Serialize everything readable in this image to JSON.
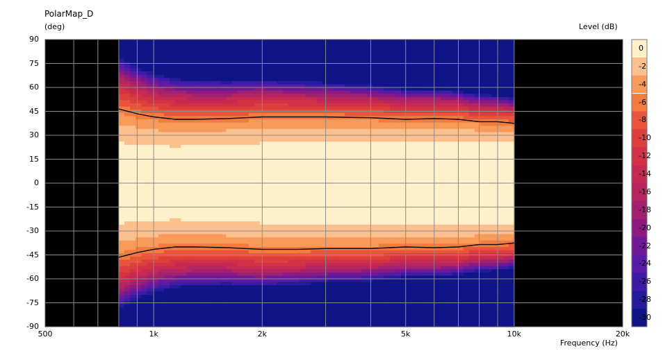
{
  "chart_data": {
    "type": "heatmap",
    "title": "PolarMap_D",
    "ylabel": "(deg)",
    "xlabel": "Frequency  (Hz)",
    "colorbar_label": "Level  (dB)",
    "x_scale": "log",
    "xlim": [
      500,
      20000
    ],
    "ylim": [
      -90,
      90
    ],
    "x_data_range": [
      800,
      10000
    ],
    "x_tick_labels": [
      "500",
      "1k",
      "2k",
      "5k",
      "10k",
      "20k"
    ],
    "x_tick_values": [
      500,
      1000,
      2000,
      5000,
      10000,
      20000
    ],
    "y_tick_values": [
      90,
      75,
      60,
      45,
      30,
      15,
      0,
      -15,
      -30,
      -45,
      -60,
      -75,
      -90
    ],
    "levels_db": [
      0,
      -2,
      -4,
      -6,
      -8,
      -10,
      -12,
      -14,
      -16,
      -18,
      -20,
      -22,
      -24,
      -26,
      -28,
      -30
    ],
    "level_tick_labels": [
      "0",
      "-2",
      "-4",
      "-6",
      "-8",
      "-10",
      "-12",
      "-14",
      "-16",
      "-18",
      "-20",
      "-22",
      "-24",
      "-26",
      "-28",
      "-30"
    ],
    "level_colors": [
      "#fff0cc",
      "#fcc08f",
      "#f79a5a",
      "#f27b3d",
      "#e8553a",
      "#dd3f3d",
      "#d23244",
      "#c62a52",
      "#b52660",
      "#a1206f",
      "#8c1a80",
      "#701998",
      "#5a1aa6",
      "#3e1ba6",
      "#241a9a",
      "#0f1586"
    ],
    "contour_level_db": -6,
    "contour_angle_deg": {
      "frequency_hz": [
        800,
        900,
        1000,
        1150,
        1300,
        1600,
        2000,
        2500,
        3000,
        4000,
        5000,
        6000,
        7000,
        8000,
        9000,
        10000
      ],
      "upper": [
        46.5,
        43.5,
        41.5,
        40,
        40,
        40.5,
        41.5,
        41.5,
        41.5,
        41,
        40,
        40.5,
        40,
        38.5,
        38.5,
        37.5
      ],
      "lower": [
        -46.5,
        -43.5,
        -41.5,
        -40,
        -40,
        -40.5,
        -41.5,
        -41.5,
        -41,
        -41,
        -40,
        -40.5,
        -40,
        -38.5,
        -38.5,
        -37.5
      ]
    }
  }
}
